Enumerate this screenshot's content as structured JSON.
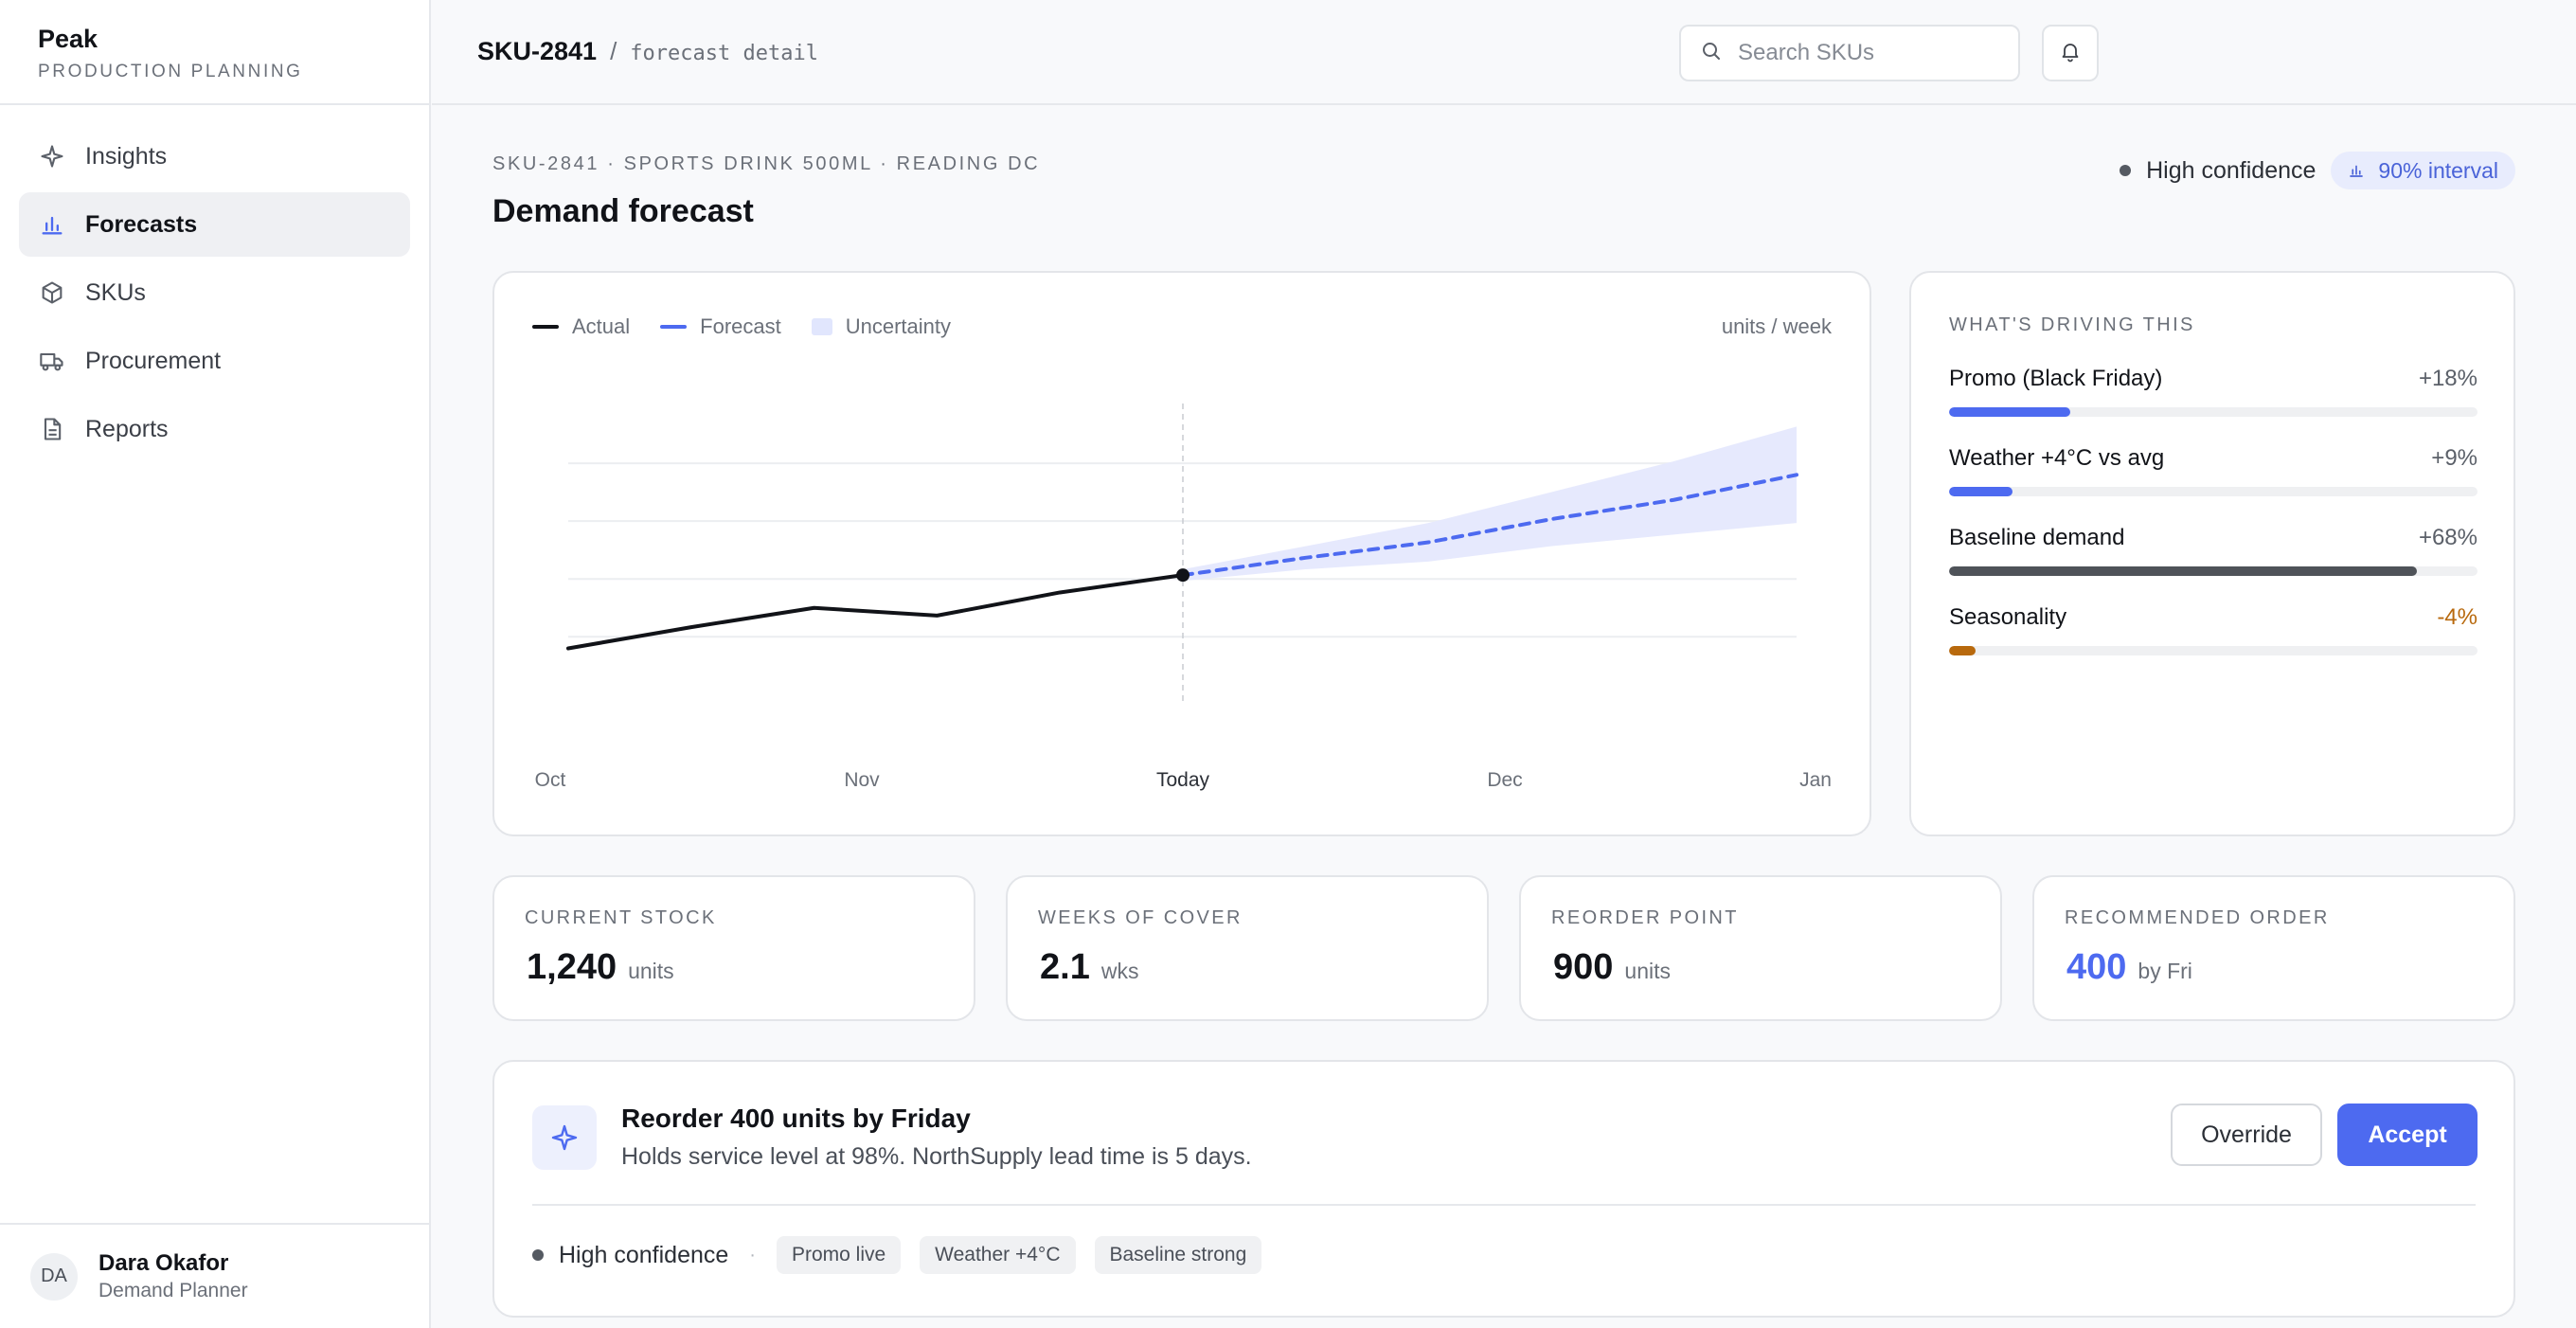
{
  "app": {
    "name": "Peak",
    "subtitle": "PRODUCTION PLANNING"
  },
  "sidebar": {
    "items": [
      {
        "label": "Insights",
        "icon": "sparkle-icon",
        "active": false
      },
      {
        "label": "Forecasts",
        "icon": "bar-chart-icon",
        "active": true
      },
      {
        "label": "SKUs",
        "icon": "cube-icon",
        "active": false
      },
      {
        "label": "Procurement",
        "icon": "truck-icon",
        "active": false
      },
      {
        "label": "Reports",
        "icon": "document-icon",
        "active": false
      }
    ]
  },
  "user": {
    "initials": "DA",
    "name": "Dara Okafor",
    "role": "Demand Planner"
  },
  "header": {
    "breadcrumb_sku": "SKU-2841",
    "breadcrumb_sep": "/",
    "breadcrumb_page": "forecast detail",
    "search_placeholder": "Search SKUs"
  },
  "page": {
    "eyebrow": "SKU-2841 · SPORTS DRINK 500ML · READING DC",
    "title": "Demand forecast",
    "confidence": "High confidence",
    "interval": "90% interval"
  },
  "chart_data": {
    "type": "line",
    "legend": [
      "Actual",
      "Forecast",
      "Uncertainty"
    ],
    "units": "units / week",
    "x_labels": [
      "Oct",
      "Nov",
      "Today",
      "Dec",
      "Jan"
    ],
    "actual": [
      14,
      25,
      35,
      31,
      43,
      52
    ],
    "forecast": [
      52,
      61,
      69,
      81,
      91,
      104
    ],
    "uncertainty_upper": [
      55,
      67,
      79,
      95,
      111,
      129
    ],
    "uncertainty_lower": [
      49,
      55,
      59,
      67,
      73,
      79
    ],
    "ylim": [
      0,
      140
    ],
    "grid": true,
    "colors": {
      "actual": "#111318",
      "forecast": "#4d6af0",
      "band": "#e6e9fd"
    }
  },
  "drivers": {
    "title": "WHAT'S DRIVING THIS",
    "items": [
      {
        "label": "Promo (Black Friday)",
        "value": "+18%",
        "fraction": 0.23,
        "color": "#4d6af0",
        "value_color": "#5b6069"
      },
      {
        "label": "Weather +4°C vs avg",
        "value": "+9%",
        "fraction": 0.12,
        "color": "#4d6af0",
        "value_color": "#5b6069"
      },
      {
        "label": "Baseline demand",
        "value": "+68%",
        "fraction": 0.885,
        "color": "#4f5359",
        "value_color": "#5b6069"
      },
      {
        "label": "Seasonality",
        "value": "-4%",
        "fraction": 0.05,
        "color": "#b8690d",
        "value_color": "#b8690d"
      }
    ]
  },
  "stats": [
    {
      "label": "CURRENT STOCK",
      "value": "1,240",
      "unit": "units",
      "accent": false
    },
    {
      "label": "WEEKS OF COVER",
      "value": "2.1",
      "unit": "wks",
      "accent": false
    },
    {
      "label": "REORDER POINT",
      "value": "900",
      "unit": "units",
      "accent": false
    },
    {
      "label": "RECOMMENDED ORDER",
      "value": "400",
      "unit": "by Fri",
      "accent": true
    }
  ],
  "recommendation": {
    "title": "Reorder 400 units by Friday",
    "subtitle": "Holds service level at 98%. NorthSupply lead time is 5 days.",
    "override_label": "Override",
    "accept_label": "Accept",
    "confidence": "High confidence",
    "separator": "·",
    "tags": [
      "Promo live",
      "Weather +4°C",
      "Baseline strong"
    ]
  }
}
